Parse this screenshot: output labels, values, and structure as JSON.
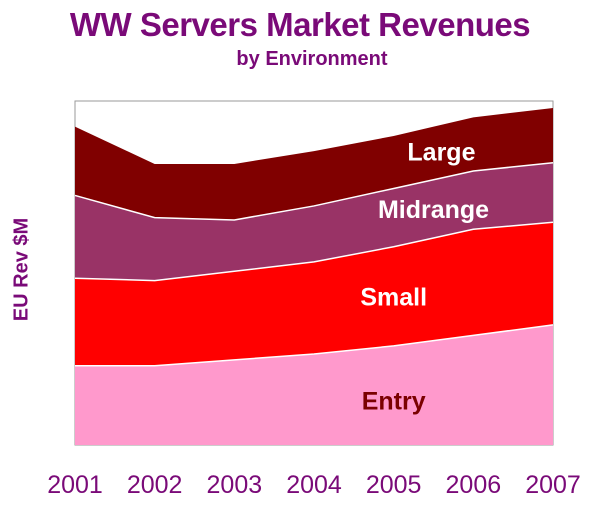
{
  "chart_data": {
    "type": "area",
    "stacked": true,
    "title": "WW Servers Market Revenues",
    "subtitle": "by Environment",
    "ylabel": "EU Rev $M",
    "xlabel": "",
    "x": [
      "2001",
      "2002",
      "2003",
      "2004",
      "2005",
      "2006",
      "2007"
    ],
    "ylim": [
      0,
      295
    ],
    "y_ticks_shown": false,
    "grid": "faint horizontal lines",
    "legend": "none (labels inside areas)",
    "series": [
      {
        "name": "Entry",
        "values": [
          68,
          68,
          73,
          78,
          85,
          94,
          103
        ],
        "color": "#ff99cc",
        "label_color": "#7a0000"
      },
      {
        "name": "Small",
        "values": [
          75,
          73,
          76,
          79,
          85,
          91,
          88
        ],
        "color": "#ff0000",
        "label_color": "#ffffff"
      },
      {
        "name": "Midrange",
        "values": [
          71,
          54,
          44,
          48,
          50,
          50,
          51
        ],
        "color": "#993366",
        "label_color": "#ffffff"
      },
      {
        "name": "Large",
        "values": [
          59,
          46,
          48,
          47,
          45,
          46,
          47
        ],
        "color": "#800000",
        "label_color": "#ffffff"
      }
    ]
  }
}
